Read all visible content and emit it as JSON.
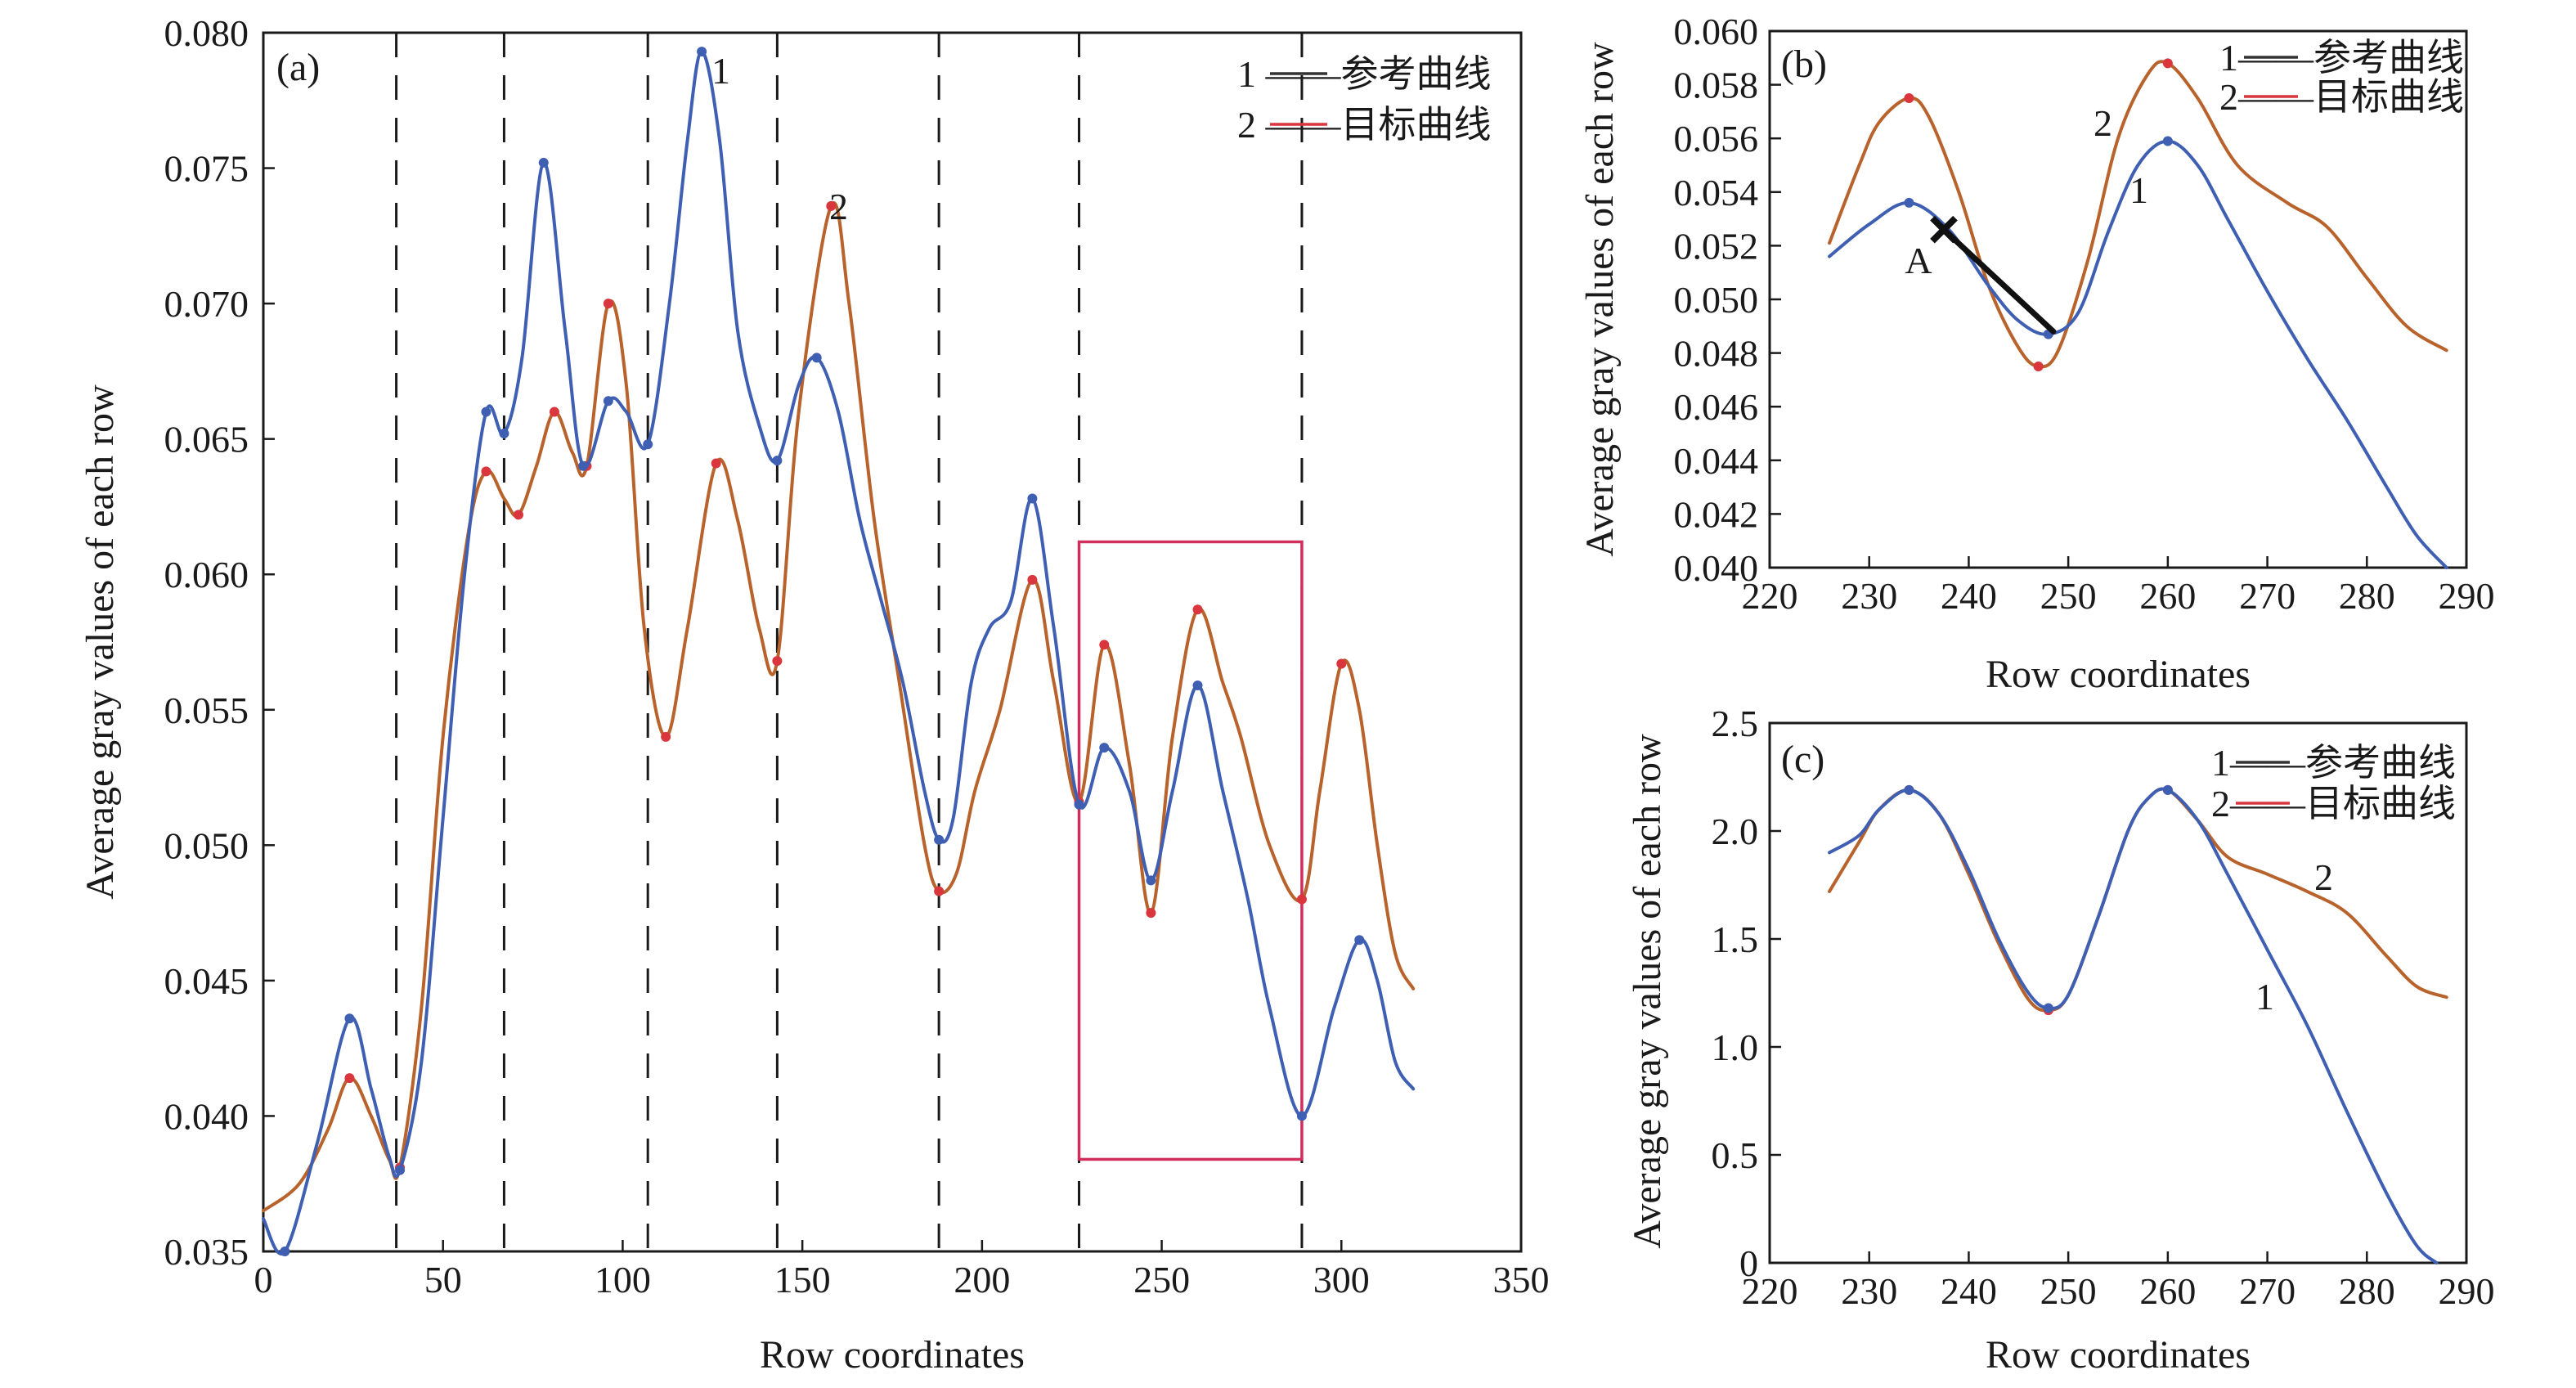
{
  "colors": {
    "reference": "#3f5fb3",
    "target": "#d9363e",
    "overlap": "#b8622c",
    "box": "#cf2e5e",
    "arrow": "#111111"
  },
  "chart_data": [
    {
      "panel": "(a)",
      "type": "line",
      "xlabel": "Row coordinates",
      "ylabel": "Average gray values of each row",
      "xlim": [
        0,
        350
      ],
      "ylim": [
        0.035,
        0.08
      ],
      "xticks": [
        0,
        50,
        100,
        150,
        200,
        250,
        300,
        350
      ],
      "yticks": [
        0.035,
        0.04,
        0.045,
        0.05,
        0.055,
        0.06,
        0.065,
        0.07,
        0.075,
        0.08
      ],
      "yticks_decimals": 3,
      "legend": {
        "position": "top-right",
        "entries": [
          "1 ——参考曲线",
          "2 ——目标曲线"
        ]
      },
      "vlines": [
        37,
        67,
        107,
        143,
        188,
        227,
        289
      ],
      "box": {
        "x": [
          227,
          289
        ],
        "y": [
          0.0384,
          0.0612
        ]
      },
      "series": [
        {
          "name": "参考曲线",
          "label": "1",
          "role": "reference",
          "points": [
            [
              0,
              0.0362
            ],
            [
              6,
              0.035
            ],
            [
              15,
              0.039
            ],
            [
              24,
              0.0436
            ],
            [
              30,
              0.041
            ],
            [
              35,
              0.0385
            ],
            [
              38,
              0.038
            ],
            [
              44,
              0.042
            ],
            [
              50,
              0.051
            ],
            [
              56,
              0.06
            ],
            [
              62,
              0.066
            ],
            [
              67,
              0.0652
            ],
            [
              72,
              0.068
            ],
            [
              78,
              0.0752
            ],
            [
              84,
              0.069
            ],
            [
              89,
              0.064
            ],
            [
              96,
              0.0664
            ],
            [
              101,
              0.066
            ],
            [
              107,
              0.0648
            ],
            [
              113,
              0.07
            ],
            [
              118,
              0.076
            ],
            [
              122,
              0.0793
            ],
            [
              127,
              0.076
            ],
            [
              132,
              0.069
            ],
            [
              138,
              0.0655
            ],
            [
              143,
              0.0642
            ],
            [
              149,
              0.067
            ],
            [
              154,
              0.068
            ],
            [
              160,
              0.066
            ],
            [
              166,
              0.062
            ],
            [
              172,
              0.059
            ],
            [
              178,
              0.056
            ],
            [
              184,
              0.052
            ],
            [
              188,
              0.0502
            ],
            [
              192,
              0.051
            ],
            [
              197,
              0.056
            ],
            [
              202,
              0.058
            ],
            [
              208,
              0.059
            ],
            [
              214,
              0.0628
            ],
            [
              220,
              0.058
            ],
            [
              227,
              0.0515
            ],
            [
              234,
              0.0536
            ],
            [
              241,
              0.052
            ],
            [
              247,
              0.0487
            ],
            [
              253,
              0.052
            ],
            [
              260,
              0.0559
            ],
            [
              267,
              0.052
            ],
            [
              274,
              0.048
            ],
            [
              280,
              0.044
            ],
            [
              289,
              0.04
            ],
            [
              298,
              0.044
            ],
            [
              305,
              0.0465
            ],
            [
              310,
              0.045
            ],
            [
              315,
              0.042
            ],
            [
              320,
              0.041
            ]
          ]
        },
        {
          "name": "目标曲线",
          "label": "2",
          "role": "target",
          "points": [
            [
              0,
              0.0365
            ],
            [
              10,
              0.0375
            ],
            [
              18,
              0.0395
            ],
            [
              24,
              0.0414
            ],
            [
              30,
              0.04
            ],
            [
              35,
              0.0384
            ],
            [
              38,
              0.0381
            ],
            [
              44,
              0.044
            ],
            [
              50,
              0.054
            ],
            [
              57,
              0.0615
            ],
            [
              62,
              0.0638
            ],
            [
              67,
              0.0628
            ],
            [
              71,
              0.0622
            ],
            [
              76,
              0.064
            ],
            [
              81,
              0.066
            ],
            [
              86,
              0.0645
            ],
            [
              90,
              0.064
            ],
            [
              96,
              0.07
            ],
            [
              101,
              0.067
            ],
            [
              106,
              0.058
            ],
            [
              112,
              0.054
            ],
            [
              118,
              0.058
            ],
            [
              126,
              0.0641
            ],
            [
              132,
              0.062
            ],
            [
              138,
              0.058
            ],
            [
              143,
              0.0568
            ],
            [
              149,
              0.066
            ],
            [
              158,
              0.0736
            ],
            [
              163,
              0.07
            ],
            [
              170,
              0.062
            ],
            [
              177,
              0.056
            ],
            [
              184,
              0.05
            ],
            [
              188,
              0.0483
            ],
            [
              193,
              0.049
            ],
            [
              198,
              0.052
            ],
            [
              205,
              0.055
            ],
            [
              214,
              0.0598
            ],
            [
              220,
              0.056
            ],
            [
              227,
              0.0516
            ],
            [
              234,
              0.0574
            ],
            [
              241,
              0.053
            ],
            [
              247,
              0.0475
            ],
            [
              253,
              0.054
            ],
            [
              260,
              0.0587
            ],
            [
              267,
              0.056
            ],
            [
              272,
              0.054
            ],
            [
              280,
              0.05
            ],
            [
              289,
              0.048
            ],
            [
              294,
              0.052
            ],
            [
              300,
              0.0567
            ],
            [
              305,
              0.055
            ],
            [
              310,
              0.05
            ],
            [
              315,
              0.046
            ],
            [
              320,
              0.0447
            ]
          ]
        }
      ]
    },
    {
      "panel": "(b)",
      "type": "line",
      "xlabel": "Row coordinates",
      "ylabel": "Average gray values of each row",
      "xlim": [
        220,
        290
      ],
      "ylim": [
        0.04,
        0.06
      ],
      "xticks": [
        220,
        230,
        240,
        250,
        260,
        270,
        280,
        290
      ],
      "yticks": [
        0.04,
        0.042,
        0.044,
        0.046,
        0.048,
        0.05,
        0.052,
        0.054,
        0.056,
        0.058,
        0.06
      ],
      "yticks_decimals": 3,
      "legend": {
        "position": "top-right",
        "entries": [
          "1——参考曲线",
          "2——目标曲线"
        ]
      },
      "annotations": [
        {
          "text": "A",
          "x": 236.0,
          "y": 0.0511
        }
      ],
      "arrow": {
        "from": [
          237.5,
          0.0526
        ],
        "to": [
          248.5,
          0.0488
        ]
      },
      "series": [
        {
          "name": "参考曲线",
          "label": "1",
          "role": "reference",
          "points": [
            [
              226,
              0.0516
            ],
            [
              230,
              0.0528
            ],
            [
              234,
              0.0536
            ],
            [
              238,
              0.0526
            ],
            [
              242,
              0.0505
            ],
            [
              245,
              0.0492
            ],
            [
              248,
              0.0487
            ],
            [
              251,
              0.0495
            ],
            [
              254,
              0.0525
            ],
            [
              257,
              0.055
            ],
            [
              260,
              0.0559
            ],
            [
              263,
              0.055
            ],
            [
              266,
              0.053
            ],
            [
              270,
              0.0503
            ],
            [
              274,
              0.0478
            ],
            [
              278,
              0.0455
            ],
            [
              282,
              0.043
            ],
            [
              285,
              0.0412
            ],
            [
              288,
              0.04
            ]
          ]
        },
        {
          "name": "目标曲线",
          "label": "2",
          "role": "target",
          "points": [
            [
              226,
              0.0521
            ],
            [
              229,
              0.055
            ],
            [
              231,
              0.0566
            ],
            [
              234,
              0.0575
            ],
            [
              236,
              0.0568
            ],
            [
              239,
              0.054
            ],
            [
              242,
              0.0505
            ],
            [
              245,
              0.0482
            ],
            [
              247,
              0.0475
            ],
            [
              249,
              0.0481
            ],
            [
              252,
              0.0515
            ],
            [
              255,
              0.056
            ],
            [
              258,
              0.0584
            ],
            [
              260,
              0.0588
            ],
            [
              263,
              0.0575
            ],
            [
              267,
              0.055
            ],
            [
              272,
              0.0536
            ],
            [
              276,
              0.0527
            ],
            [
              280,
              0.0508
            ],
            [
              284,
              0.049
            ],
            [
              288,
              0.0481
            ]
          ]
        }
      ]
    },
    {
      "panel": "(c)",
      "type": "line",
      "xlabel": "Row coordinates",
      "ylabel": "Average gray values of each row",
      "xlim": [
        220,
        290
      ],
      "ylim": [
        0,
        2.5
      ],
      "xticks": [
        220,
        230,
        240,
        250,
        260,
        270,
        280,
        290
      ],
      "yticks": [
        0,
        0.5,
        1.0,
        1.5,
        2.0,
        2.5
      ],
      "ytick_labels": [
        "0",
        "0.5",
        "1.0",
        "1.5",
        "2.0",
        "2.5"
      ],
      "legend": {
        "position": "top-right",
        "entries": [
          "1——参考曲线",
          "2——目标曲线"
        ]
      },
      "series": [
        {
          "name": "参考曲线",
          "label": "1",
          "role": "reference",
          "points": [
            [
              226,
              1.9
            ],
            [
              229,
              1.98
            ],
            [
              231,
              2.1
            ],
            [
              234,
              2.19
            ],
            [
              237,
              2.08
            ],
            [
              240,
              1.82
            ],
            [
              243,
              1.5
            ],
            [
              246,
              1.25
            ],
            [
              248,
              1.18
            ],
            [
              250,
              1.24
            ],
            [
              253,
              1.6
            ],
            [
              256,
              2.0
            ],
            [
              258,
              2.15
            ],
            [
              260,
              2.19
            ],
            [
              263,
              2.05
            ],
            [
              266,
              1.8
            ],
            [
              270,
              1.45
            ],
            [
              274,
              1.1
            ],
            [
              278,
              0.7
            ],
            [
              282,
              0.32
            ],
            [
              285,
              0.08
            ],
            [
              287,
              0.0
            ]
          ]
        },
        {
          "name": "目标曲线",
          "label": "2",
          "role": "target",
          "points": [
            [
              226,
              1.72
            ],
            [
              229,
              1.95
            ],
            [
              231,
              2.1
            ],
            [
              234,
              2.19
            ],
            [
              237,
              2.08
            ],
            [
              240,
              1.8
            ],
            [
              243,
              1.48
            ],
            [
              246,
              1.22
            ],
            [
              248,
              1.17
            ],
            [
              250,
              1.24
            ],
            [
              253,
              1.6
            ],
            [
              256,
              2.0
            ],
            [
              258,
              2.15
            ],
            [
              260,
              2.19
            ],
            [
              263,
              2.05
            ],
            [
              266,
              1.88
            ],
            [
              270,
              1.8
            ],
            [
              274,
              1.72
            ],
            [
              278,
              1.62
            ],
            [
              282,
              1.42
            ],
            [
              285,
              1.28
            ],
            [
              288,
              1.23
            ]
          ]
        }
      ]
    }
  ]
}
